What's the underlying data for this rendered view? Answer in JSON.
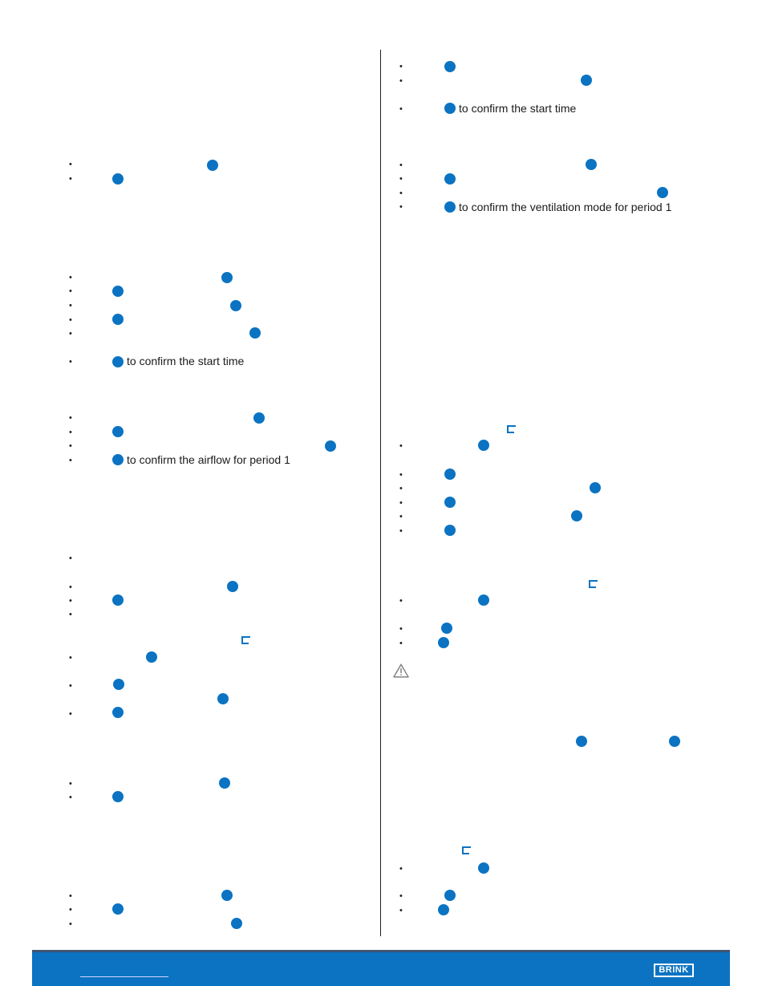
{
  "page": {
    "confirm_start_time_left": "to confirm the start time",
    "confirm_airflow_period_1": "to confirm the airflow for period 1",
    "confirm_start_time_right": "to confirm the start time",
    "confirm_ventilation_mode_period_1": "to confirm the ventilation mode for period 1"
  },
  "footer": {
    "brand_logo": "BRINK",
    "link_text": "",
    "background_color": "#0b73c2",
    "accent_color": "#3e5573"
  },
  "icons": {
    "step_button": "blue-button-icon",
    "menu_bracket": "bracket-icon",
    "warning": "warning-triangle-icon"
  }
}
